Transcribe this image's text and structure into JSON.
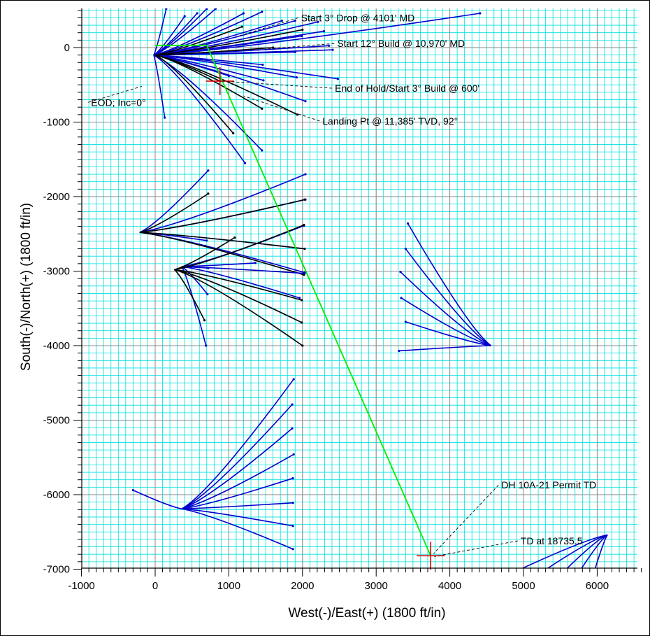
{
  "chart_data": {
    "type": "line",
    "xlabel": "West(-)/East(+) (1800 ft/in)",
    "ylabel": "South(-)/North(+) (1800 ft/in)",
    "xlim": [
      -1000,
      6600
    ],
    "ylim": [
      -7000,
      520
    ],
    "x_ticks": [
      -1000,
      0,
      1000,
      2000,
      3000,
      4000,
      5000,
      6000
    ],
    "y_ticks": [
      0,
      -1000,
      -2000,
      -3000,
      -4000,
      -5000,
      -6000,
      -7000
    ],
    "grid": "on",
    "colors": {
      "grid_minor": "#00e0e0",
      "grid_major": "#8a8a8a",
      "offset_wells": "#0000cc",
      "pad_wells": "#000000",
      "planned_well": "#00ee00",
      "target_marker": "#dd0000"
    },
    "planned_well": {
      "name": "",
      "x": [
        0,
        700,
        3740
      ],
      "y": [
        30,
        30,
        -6820
      ]
    },
    "targets": [
      {
        "x": 880,
        "y": -450
      },
      {
        "x": 3740,
        "y": -6820
      }
    ],
    "annotations": [
      {
        "text": "Start 3° Drop @ 4101' MD",
        "x": 1980,
        "y": 400,
        "leader_to": [
          1150,
          160
        ]
      },
      {
        "text": "Start 12° Build @ 10,970' MD",
        "x": 2470,
        "y": 55,
        "leader_to": [
          1500,
          -20
        ]
      },
      {
        "text": "End of Hold/Start 3° Build @ 600'",
        "x": 2440,
        "y": -545,
        "leader_to": [
          900,
          -450
        ]
      },
      {
        "text": "Landing Pt @ 11,385' TVD, 92°",
        "x": 2270,
        "y": -985,
        "leader_to": [
          1200,
          -650
        ]
      },
      {
        "text": "EOD; Inc=0°",
        "x": -870,
        "y": -735,
        "leader_to": [
          -180,
          -520
        ]
      },
      {
        "text": "DH 10A-21 Permit TD",
        "x": 4700,
        "y": -5870,
        "leader_to": [
          3780,
          -6790
        ]
      },
      {
        "text": "TD at 18735.5",
        "x": 4960,
        "y": -6620,
        "leader_to": [
          3790,
          -6830
        ]
      }
    ],
    "wells": {
      "north_pad_blue": {
        "origin": [
          -20,
          -100
        ],
        "ends": [
          [
            150,
            520
          ],
          [
            400,
            420
          ],
          [
            820,
            520
          ],
          [
            1450,
            480
          ],
          [
            1720,
            360
          ],
          [
            1900,
            360
          ],
          [
            4410,
            460
          ],
          [
            2290,
            220
          ],
          [
            2360,
            25
          ],
          [
            1900,
            -60
          ],
          [
            2480,
            -420
          ],
          [
            1460,
            -230
          ],
          [
            1000,
            -380
          ],
          [
            1470,
            -440
          ],
          [
            2040,
            -720
          ],
          [
            130,
            -940
          ],
          [
            1220,
            -1550
          ],
          [
            1450,
            -1380
          ],
          [
            1920,
            -400
          ],
          [
            2410,
            -30
          ],
          [
            570,
            460
          ],
          [
            1990,
            155
          ],
          [
            1200,
            460
          ],
          [
            700,
            520
          ],
          [
            2210,
            345
          ]
        ]
      },
      "north_pad_black": {
        "origin": [
          0,
          -100
        ],
        "ends": [
          [
            1180,
            280
          ],
          [
            2000,
            240
          ],
          [
            1600,
            0
          ],
          [
            1060,
            -1150
          ],
          [
            1930,
            -900
          ],
          [
            880,
            -450
          ],
          [
            1450,
            -820
          ]
        ]
      },
      "middle_pad_a_blue": {
        "origin": [
          -210,
          -2480
        ],
        "ends": [
          [
            720,
            -1650
          ],
          [
            2040,
            -1700
          ],
          [
            2040,
            -2040
          ],
          [
            2030,
            -2700
          ],
          [
            2030,
            -3020
          ],
          [
            680,
            -2660
          ],
          [
            700,
            -2590
          ]
        ]
      },
      "middle_pad_a_black": {
        "origin": [
          -210,
          -2480
        ],
        "ends": [
          [
            720,
            -1960
          ],
          [
            2030,
            -2040
          ],
          [
            2030,
            -2700
          ],
          [
            2020,
            -3050
          ]
        ]
      },
      "middle_pad_b_blue": {
        "origin": [
          360,
          -2940
        ],
        "ends": [
          [
            710,
            -3310
          ],
          [
            720,
            -2960
          ],
          [
            2020,
            -2390
          ],
          [
            1960,
            -3360
          ],
          [
            690,
            -4000
          ],
          [
            2030,
            -3030
          ],
          [
            1360,
            -2890
          ]
        ]
      },
      "middle_pad_b_black": {
        "origin": [
          260,
          -2980
        ],
        "ends": [
          [
            2020,
            -2380
          ],
          [
            1990,
            -3690
          ],
          [
            2000,
            -4000
          ],
          [
            1990,
            -3390
          ],
          [
            670,
            -3660
          ],
          [
            1080,
            -2550
          ]
        ]
      },
      "east_fan_blue": {
        "origin": [
          4560,
          -4000
        ],
        "ends": [
          [
            3430,
            -2360
          ],
          [
            3400,
            -2700
          ],
          [
            3330,
            -3010
          ],
          [
            3340,
            -3360
          ],
          [
            3400,
            -3680
          ],
          [
            3310,
            -4070
          ]
        ]
      },
      "south_fan_blue": {
        "origin": [
          360,
          -6190
        ],
        "ends": [
          [
            -300,
            -5940
          ],
          [
            1880,
            -4450
          ],
          [
            1860,
            -4790
          ],
          [
            1860,
            -5110
          ],
          [
            1880,
            -5460
          ],
          [
            1870,
            -5780
          ],
          [
            1870,
            -6110
          ],
          [
            1870,
            -6420
          ],
          [
            1870,
            -6730
          ]
        ]
      },
      "southeast_fan_blue": {
        "origin": [
          6140,
          -6540
        ],
        "ends": [
          [
            4960,
            -7000
          ],
          [
            5310,
            -7000
          ],
          [
            5580,
            -7000
          ],
          [
            5780,
            -7000
          ],
          [
            5970,
            -7000
          ]
        ]
      }
    }
  }
}
